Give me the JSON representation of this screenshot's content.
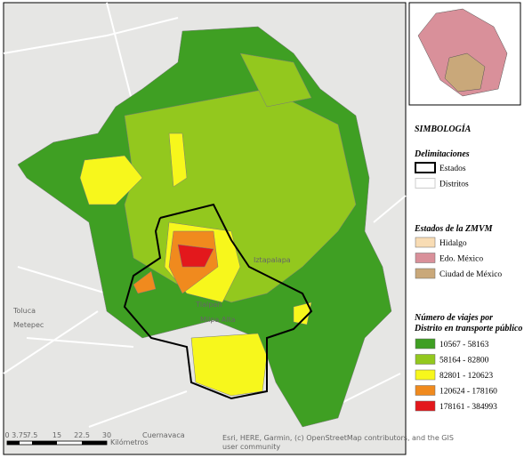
{
  "map": {
    "place_labels": [
      "Toluca",
      "Metepec",
      "Milpa Alta",
      "Cuernavaca",
      "Iztapalapa",
      "Tlalpan"
    ],
    "scale": {
      "ticks": [
        "0",
        "3.75",
        "7.5",
        "15",
        "22.5",
        "30"
      ],
      "unit": "Kilómetros"
    },
    "attribution": "Esri, HERE, Garmin, (c) OpenStreetMap contributors, and the GIS user community"
  },
  "legend": {
    "title": "SIMBOLOGÍA",
    "boundaries": {
      "title": "Delimitaciones",
      "items": [
        {
          "label": "Estados",
          "color": "#000000"
        },
        {
          "label": "Distritos",
          "color": "#cccccc"
        }
      ]
    },
    "states": {
      "title": "Estados de la ZMVM",
      "items": [
        {
          "label": "Hidalgo",
          "color": "#f8dcb4"
        },
        {
          "label": "Edo. México",
          "color": "#d9909a"
        },
        {
          "label": "Ciudad de México",
          "color": "#c9a87a"
        }
      ]
    },
    "trips": {
      "title": "Número de viajes por Distrito en transporte público",
      "items": [
        {
          "label": "10567 - 58163",
          "color": "#3f9f23"
        },
        {
          "label": "58164 - 82800",
          "color": "#93c81e"
        },
        {
          "label": "82801 - 120623",
          "color": "#f7f71c"
        },
        {
          "label": "120624 - 178160",
          "color": "#f08a1e"
        },
        {
          "label": "178161 - 384993",
          "color": "#e3181c"
        }
      ]
    }
  }
}
